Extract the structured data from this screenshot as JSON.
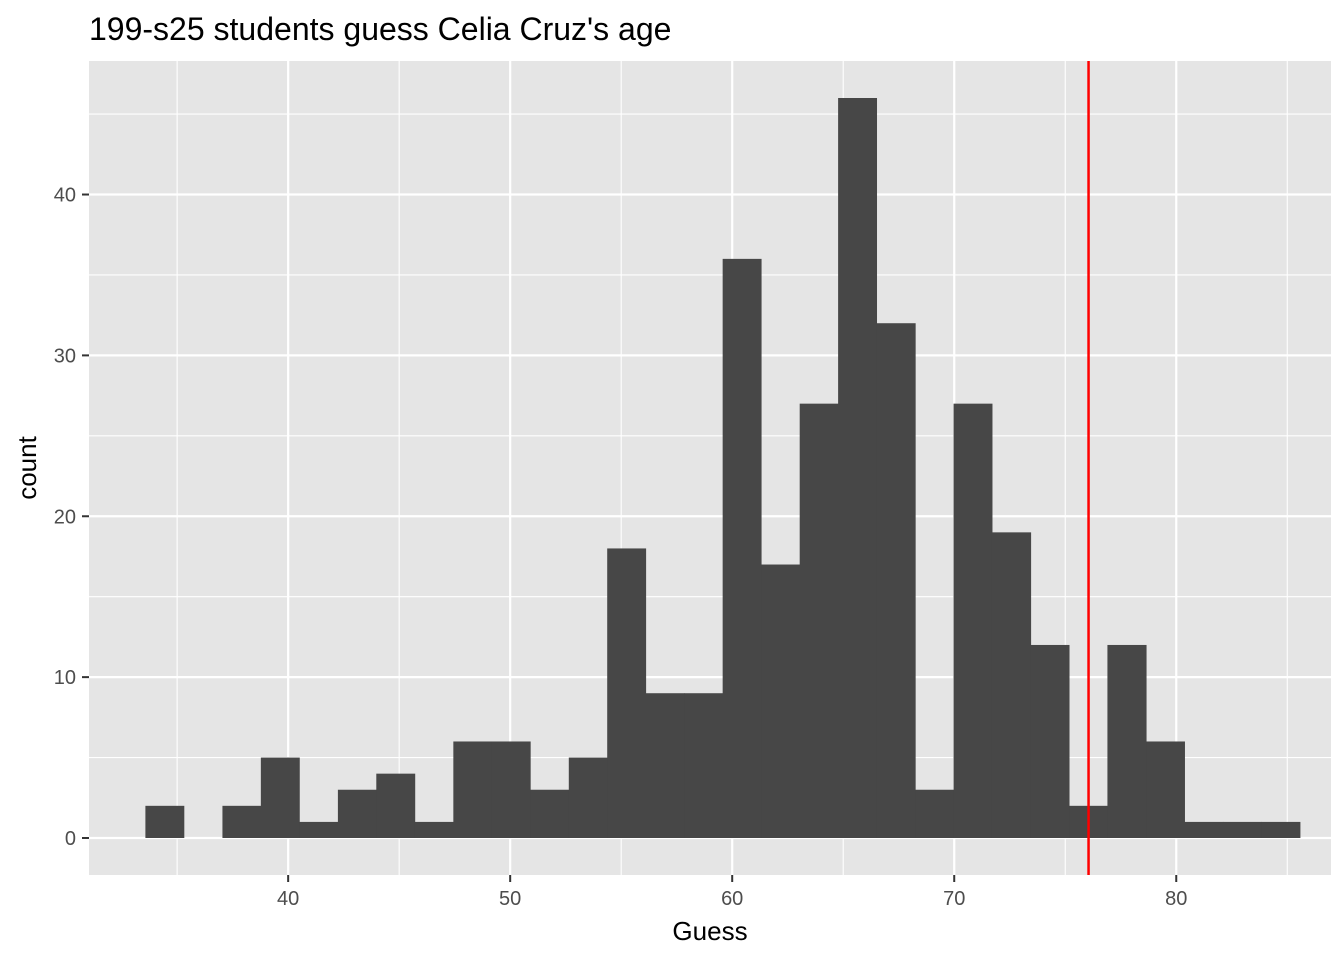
{
  "chart_data": {
    "type": "bar",
    "title": "199-s25 students guess Celia Cruz's age",
    "xlabel": "Guess",
    "ylabel": "count",
    "xlim": [
      31.03,
      86.97
    ],
    "ylim": [
      -2.3,
      48.3
    ],
    "x_ticks": [
      40,
      50,
      60,
      70,
      80
    ],
    "y_ticks": [
      0,
      10,
      20,
      30,
      40
    ],
    "x_tick_labels": [
      "40",
      "50",
      "60",
      "70",
      "80"
    ],
    "y_tick_labels": [
      "0",
      "10",
      "20",
      "30",
      "40"
    ],
    "grid": true,
    "bin_width": 1.7333,
    "bins": [
      {
        "x0": 33.57,
        "x1": 35.3,
        "count": 2
      },
      {
        "x0": 35.3,
        "x1": 37.04,
        "count": 0
      },
      {
        "x0": 37.04,
        "x1": 38.77,
        "count": 2
      },
      {
        "x0": 38.77,
        "x1": 40.5,
        "count": 5
      },
      {
        "x0": 40.5,
        "x1": 42.24,
        "count": 1
      },
      {
        "x0": 42.24,
        "x1": 43.97,
        "count": 3
      },
      {
        "x0": 43.97,
        "x1": 45.7,
        "count": 4
      },
      {
        "x0": 45.7,
        "x1": 47.44,
        "count": 1
      },
      {
        "x0": 47.44,
        "x1": 49.17,
        "count": 6
      },
      {
        "x0": 49.17,
        "x1": 50.9,
        "count": 6
      },
      {
        "x0": 50.9,
        "x1": 52.64,
        "count": 3
      },
      {
        "x0": 52.64,
        "x1": 54.37,
        "count": 5
      },
      {
        "x0": 54.37,
        "x1": 56.1,
        "count": 18
      },
      {
        "x0": 56.1,
        "x1": 57.84,
        "count": 9
      },
      {
        "x0": 57.84,
        "x1": 59.57,
        "count": 9
      },
      {
        "x0": 59.57,
        "x1": 61.3,
        "count": 36
      },
      {
        "x0": 61.3,
        "x1": 63.04,
        "count": 17
      },
      {
        "x0": 63.04,
        "x1": 64.77,
        "count": 27
      },
      {
        "x0": 64.77,
        "x1": 66.5,
        "count": 46
      },
      {
        "x0": 66.5,
        "x1": 68.24,
        "count": 32
      },
      {
        "x0": 68.24,
        "x1": 69.97,
        "count": 3
      },
      {
        "x0": 69.97,
        "x1": 71.7,
        "count": 27
      },
      {
        "x0": 71.7,
        "x1": 73.44,
        "count": 19
      },
      {
        "x0": 73.44,
        "x1": 75.17,
        "count": 12
      },
      {
        "x0": 75.17,
        "x1": 76.9,
        "count": 2
      },
      {
        "x0": 76.9,
        "x1": 78.64,
        "count": 12
      },
      {
        "x0": 78.64,
        "x1": 80.37,
        "count": 6
      },
      {
        "x0": 80.37,
        "x1": 82.1,
        "count": 1
      },
      {
        "x0": 82.1,
        "x1": 83.84,
        "count": 1
      },
      {
        "x0": 83.84,
        "x1": 85.57,
        "count": 1
      }
    ],
    "reference_line": {
      "x": 76.05,
      "color": "#ff0000"
    },
    "colors": {
      "bar_fill": "#474747",
      "panel_background": "#e5e5e5",
      "gridline": "#ffffff",
      "reference_line": "#ff0000"
    }
  }
}
